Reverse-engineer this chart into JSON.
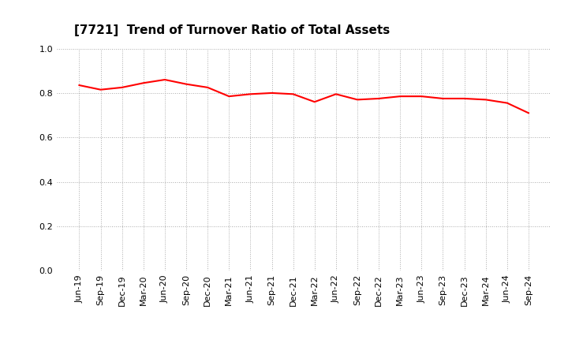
{
  "title": "[7721]  Trend of Turnover Ratio of Total Assets",
  "labels": [
    "Jun-19",
    "Sep-19",
    "Dec-19",
    "Mar-20",
    "Jun-20",
    "Sep-20",
    "Dec-20",
    "Mar-21",
    "Jun-21",
    "Sep-21",
    "Dec-21",
    "Mar-22",
    "Jun-22",
    "Sep-22",
    "Dec-22",
    "Mar-23",
    "Jun-23",
    "Sep-23",
    "Dec-23",
    "Mar-24",
    "Jun-24",
    "Sep-24"
  ],
  "values": [
    0.835,
    0.815,
    0.825,
    0.845,
    0.86,
    0.84,
    0.825,
    0.785,
    0.795,
    0.8,
    0.795,
    0.76,
    0.795,
    0.77,
    0.775,
    0.785,
    0.785,
    0.775,
    0.775,
    0.77,
    0.755,
    0.71
  ],
  "line_color": "#ff0000",
  "line_width": 1.5,
  "ylim": [
    0.0,
    1.0
  ],
  "yticks": [
    0.0,
    0.2,
    0.4,
    0.6,
    0.8,
    1.0
  ],
  "grid_color": "#aaaaaa",
  "grid_style": "dotted",
  "bg_color": "#ffffff",
  "title_fontsize": 11,
  "tick_fontsize": 8
}
